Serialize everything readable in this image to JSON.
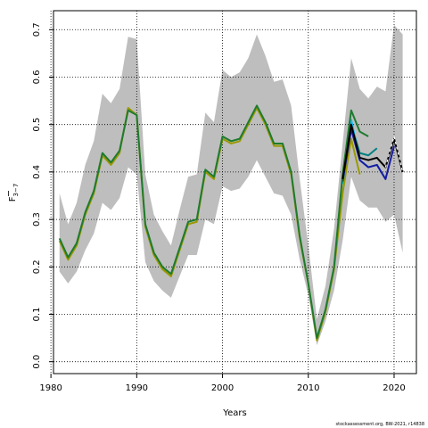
{
  "chart_data": {
    "type": "line",
    "xlabel": "Years",
    "ylabel_main": "F",
    "ylabel_sub": "3−7",
    "xlim": [
      1980.3,
      2022.6
    ],
    "ylim": [
      -0.025,
      0.74
    ],
    "x_ticks": [
      1980,
      1990,
      2000,
      2010,
      2020
    ],
    "y_ticks": [
      0.0,
      0.1,
      0.2,
      0.3,
      0.4,
      0.5,
      0.6,
      0.7
    ],
    "grid": "dotted",
    "footnote": "stockassessment.org, BW-2021, r14838",
    "band": {
      "years": [
        1981,
        1982,
        1983,
        1984,
        1985,
        1986,
        1987,
        1988,
        1989,
        1990,
        1991,
        1992,
        1993,
        1994,
        1995,
        1996,
        1997,
        1998,
        1999,
        2000,
        2001,
        2002,
        2003,
        2004,
        2005,
        2006,
        2007,
        2008,
        2009,
        2010,
        2011,
        2012,
        2013,
        2014,
        2015,
        2016,
        2017,
        2018,
        2019,
        2020,
        2021
      ],
      "upper": [
        0.355,
        0.29,
        0.335,
        0.415,
        0.465,
        0.565,
        0.545,
        0.575,
        0.685,
        0.68,
        0.395,
        0.31,
        0.275,
        0.245,
        0.32,
        0.39,
        0.395,
        0.525,
        0.505,
        0.615,
        0.6,
        0.61,
        0.64,
        0.69,
        0.645,
        0.59,
        0.595,
        0.54,
        0.385,
        0.245,
        0.09,
        0.16,
        0.28,
        0.46,
        0.64,
        0.575,
        0.555,
        0.58,
        0.57,
        0.71,
        0.69
      ],
      "lower": [
        0.19,
        0.165,
        0.19,
        0.235,
        0.27,
        0.335,
        0.32,
        0.345,
        0.41,
        0.395,
        0.21,
        0.17,
        0.15,
        0.135,
        0.18,
        0.225,
        0.225,
        0.3,
        0.29,
        0.37,
        0.36,
        0.365,
        0.39,
        0.425,
        0.39,
        0.355,
        0.35,
        0.31,
        0.215,
        0.14,
        0.035,
        0.085,
        0.15,
        0.255,
        0.39,
        0.34,
        0.325,
        0.325,
        0.295,
        0.31,
        0.23
      ]
    },
    "series": [
      {
        "color": "#999900",
        "years": [
          1981,
          1982,
          1983,
          1984,
          1985,
          1986,
          1987,
          1988,
          1989,
          1990,
          1991,
          1992,
          1993,
          1994,
          1995,
          1996,
          1997,
          1998,
          1999,
          2000,
          2001,
          2002,
          2003,
          2004,
          2005,
          2006,
          2007,
          2008,
          2009,
          2010,
          2011,
          2012,
          2013,
          2014,
          2015,
          2016
        ],
        "values": [
          0.255,
          0.215,
          0.245,
          0.31,
          0.355,
          0.435,
          0.415,
          0.44,
          0.535,
          0.52,
          0.285,
          0.225,
          0.195,
          0.18,
          0.235,
          0.29,
          0.295,
          0.4,
          0.385,
          0.47,
          0.46,
          0.465,
          0.5,
          0.535,
          0.5,
          0.455,
          0.455,
          0.395,
          0.26,
          0.165,
          0.045,
          0.105,
          0.195,
          0.355,
          0.47,
          0.395
        ]
      },
      {
        "color": "#008080",
        "years": [
          2014,
          2015,
          2016,
          2017,
          2018
        ],
        "values": [
          0.385,
          0.5,
          0.44,
          0.435,
          0.45
        ]
      },
      {
        "color": "#00bfff",
        "years": [
          2014,
          2015,
          2016,
          2017,
          2018,
          2019
        ],
        "values": [
          0.375,
          0.51,
          0.425,
          0.41,
          0.415,
          0.385
        ]
      },
      {
        "color": "#1a1aa0",
        "years": [
          2014,
          2015,
          2016,
          2017,
          2018,
          2019,
          2020
        ],
        "values": [
          0.38,
          0.49,
          0.425,
          0.41,
          0.415,
          0.385,
          0.455
        ]
      },
      {
        "color": "#1e7b2e",
        "years": [
          1981,
          1982,
          1983,
          1984,
          1985,
          1986,
          1987,
          1988,
          1989,
          1990,
          1991,
          1992,
          1993,
          1994,
          1995,
          1996,
          1997,
          1998,
          1999,
          2000,
          2001,
          2002,
          2003,
          2004,
          2005,
          2006,
          2007,
          2008,
          2009,
          2010,
          2011,
          2012,
          2013,
          2014,
          2015,
          2016,
          2017
        ],
        "values": [
          0.26,
          0.22,
          0.25,
          0.315,
          0.36,
          0.44,
          0.42,
          0.445,
          0.53,
          0.52,
          0.29,
          0.23,
          0.2,
          0.185,
          0.24,
          0.295,
          0.3,
          0.405,
          0.39,
          0.475,
          0.465,
          0.47,
          0.505,
          0.54,
          0.505,
          0.46,
          0.46,
          0.4,
          0.265,
          0.165,
          0.05,
          0.11,
          0.2,
          0.395,
          0.53,
          0.485,
          0.475
        ]
      },
      {
        "color": "#000000",
        "years": [
          2014,
          2015,
          2016,
          2017,
          2018,
          2019,
          2020,
          2021
        ],
        "values": [
          0.385,
          0.5,
          0.43,
          0.425,
          0.43,
          0.41,
          0.47,
          0.4
        ]
      }
    ],
    "highlight": {
      "color": "#ffffff",
      "dash": true,
      "years": [
        2019,
        2020,
        2021
      ],
      "values": [
        0.41,
        0.475,
        0.4
      ]
    }
  }
}
